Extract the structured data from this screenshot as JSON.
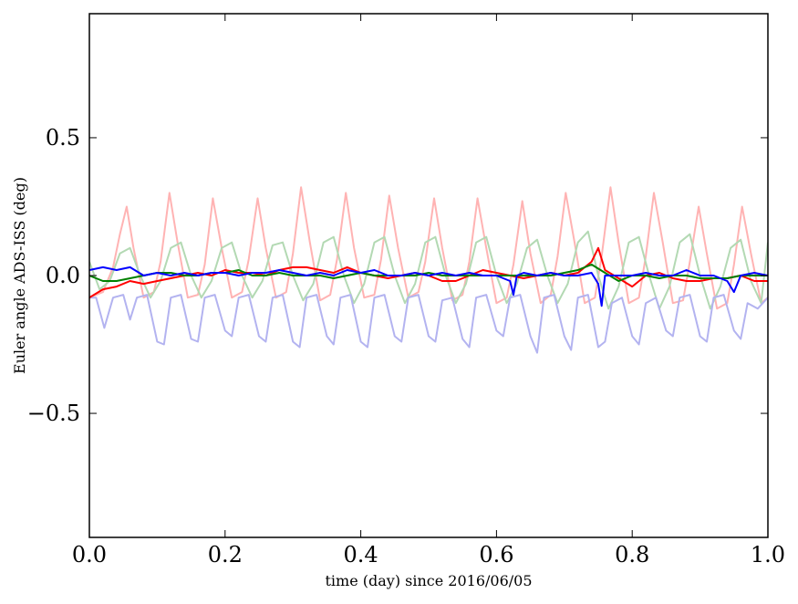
{
  "chart_data": {
    "type": "line",
    "title": "",
    "xlabel": "time (day) since 2016/06/05",
    "ylabel": "Euler angle ADS-ISS (deg)",
    "xlim": [
      0.0,
      1.0
    ],
    "ylim": [
      -0.95,
      0.95
    ],
    "x_ticks": [
      0.0,
      0.2,
      0.4,
      0.6,
      0.8,
      1.0
    ],
    "x_tick_labels": [
      "0.0",
      "0.2",
      "0.4",
      "0.6",
      "0.8",
      "1.0"
    ],
    "y_ticks": [
      -0.5,
      0.0,
      0.5
    ],
    "y_tick_labels": [
      "−0.5",
      "0.0",
      "0.5"
    ],
    "grid": false,
    "legend": "none",
    "series": [
      {
        "color": "#ffb3b3",
        "x": [
          0.0,
          0.02,
          0.035,
          0.045,
          0.055,
          0.065,
          0.08,
          0.095,
          0.105,
          0.118,
          0.13,
          0.145,
          0.16,
          0.17,
          0.182,
          0.195,
          0.21,
          0.225,
          0.235,
          0.248,
          0.26,
          0.275,
          0.29,
          0.3,
          0.312,
          0.325,
          0.34,
          0.355,
          0.365,
          0.378,
          0.39,
          0.405,
          0.42,
          0.43,
          0.442,
          0.455,
          0.47,
          0.485,
          0.495,
          0.508,
          0.52,
          0.535,
          0.55,
          0.56,
          0.572,
          0.585,
          0.6,
          0.615,
          0.625,
          0.638,
          0.65,
          0.665,
          0.68,
          0.69,
          0.702,
          0.715,
          0.73,
          0.745,
          0.755,
          0.768,
          0.78,
          0.795,
          0.81,
          0.82,
          0.832,
          0.845,
          0.86,
          0.875,
          0.885,
          0.898,
          0.91,
          0.925,
          0.94,
          0.95,
          0.962,
          0.975,
          0.99,
          1.0
        ],
        "y": [
          -0.08,
          -0.06,
          0.03,
          0.15,
          0.25,
          0.1,
          -0.08,
          -0.06,
          0.05,
          0.3,
          0.12,
          -0.08,
          -0.07,
          0.04,
          0.28,
          0.1,
          -0.08,
          -0.06,
          0.06,
          0.28,
          0.1,
          -0.08,
          -0.06,
          0.08,
          0.32,
          0.12,
          -0.09,
          -0.07,
          0.06,
          0.3,
          0.1,
          -0.08,
          -0.07,
          0.06,
          0.29,
          0.1,
          -0.08,
          -0.06,
          0.05,
          0.28,
          0.1,
          -0.09,
          -0.07,
          0.05,
          0.28,
          0.1,
          -0.1,
          -0.08,
          0.04,
          0.27,
          0.08,
          -0.1,
          -0.07,
          0.07,
          0.3,
          0.12,
          -0.1,
          -0.08,
          0.07,
          0.32,
          0.12,
          -0.1,
          -0.08,
          0.07,
          0.3,
          0.12,
          -0.1,
          -0.09,
          0.05,
          0.25,
          0.08,
          -0.12,
          -0.1,
          0.04,
          0.25,
          0.08,
          -0.1,
          -0.08
        ]
      },
      {
        "color": "#b3d9b3",
        "x": [
          0.0,
          0.015,
          0.03,
          0.045,
          0.06,
          0.075,
          0.09,
          0.105,
          0.12,
          0.135,
          0.15,
          0.165,
          0.18,
          0.195,
          0.21,
          0.225,
          0.24,
          0.255,
          0.27,
          0.285,
          0.3,
          0.315,
          0.33,
          0.345,
          0.36,
          0.375,
          0.39,
          0.405,
          0.42,
          0.435,
          0.45,
          0.465,
          0.48,
          0.495,
          0.51,
          0.525,
          0.54,
          0.555,
          0.57,
          0.585,
          0.6,
          0.615,
          0.63,
          0.645,
          0.66,
          0.675,
          0.69,
          0.705,
          0.72,
          0.735,
          0.75,
          0.765,
          0.78,
          0.795,
          0.81,
          0.825,
          0.84,
          0.855,
          0.87,
          0.885,
          0.9,
          0.915,
          0.93,
          0.945,
          0.96,
          0.975,
          0.99,
          1.0
        ],
        "y": [
          0.05,
          -0.05,
          -0.02,
          0.08,
          0.1,
          0.0,
          -0.08,
          -0.02,
          0.1,
          0.12,
          0.0,
          -0.08,
          -0.02,
          0.1,
          0.12,
          0.0,
          -0.08,
          -0.02,
          0.11,
          0.12,
          0.0,
          -0.09,
          -0.03,
          0.12,
          0.14,
          0.0,
          -0.1,
          -0.03,
          0.12,
          0.14,
          0.0,
          -0.1,
          -0.03,
          0.12,
          0.14,
          0.0,
          -0.1,
          -0.03,
          0.12,
          0.14,
          0.0,
          -0.1,
          -0.03,
          0.1,
          0.13,
          0.0,
          -0.1,
          -0.03,
          0.12,
          0.16,
          0.0,
          -0.12,
          -0.04,
          0.12,
          0.14,
          0.0,
          -0.12,
          -0.04,
          0.12,
          0.15,
          0.0,
          -0.12,
          -0.04,
          0.1,
          0.13,
          -0.02,
          -0.1,
          0.12
        ]
      },
      {
        "color": "#b3b3f0",
        "x": [
          0.0,
          0.01,
          0.022,
          0.035,
          0.05,
          0.06,
          0.07,
          0.085,
          0.1,
          0.11,
          0.12,
          0.135,
          0.15,
          0.16,
          0.17,
          0.185,
          0.2,
          0.21,
          0.22,
          0.235,
          0.25,
          0.26,
          0.27,
          0.285,
          0.3,
          0.31,
          0.32,
          0.335,
          0.35,
          0.36,
          0.37,
          0.385,
          0.4,
          0.41,
          0.42,
          0.435,
          0.45,
          0.46,
          0.47,
          0.485,
          0.5,
          0.51,
          0.52,
          0.535,
          0.55,
          0.56,
          0.57,
          0.585,
          0.6,
          0.61,
          0.62,
          0.635,
          0.65,
          0.66,
          0.67,
          0.685,
          0.7,
          0.71,
          0.72,
          0.735,
          0.75,
          0.76,
          0.77,
          0.785,
          0.8,
          0.81,
          0.82,
          0.835,
          0.85,
          0.86,
          0.87,
          0.885,
          0.9,
          0.91,
          0.92,
          0.935,
          0.95,
          0.96,
          0.97,
          0.985,
          1.0
        ],
        "y": [
          -0.08,
          -0.08,
          -0.19,
          -0.08,
          -0.07,
          -0.16,
          -0.08,
          -0.07,
          -0.24,
          -0.25,
          -0.08,
          -0.07,
          -0.23,
          -0.24,
          -0.08,
          -0.07,
          -0.2,
          -0.22,
          -0.08,
          -0.07,
          -0.22,
          -0.24,
          -0.08,
          -0.07,
          -0.24,
          -0.26,
          -0.08,
          -0.07,
          -0.22,
          -0.25,
          -0.08,
          -0.07,
          -0.24,
          -0.26,
          -0.08,
          -0.07,
          -0.22,
          -0.24,
          -0.08,
          -0.07,
          -0.22,
          -0.24,
          -0.09,
          -0.08,
          -0.23,
          -0.26,
          -0.08,
          -0.07,
          -0.2,
          -0.22,
          -0.08,
          -0.07,
          -0.22,
          -0.28,
          -0.08,
          -0.07,
          -0.22,
          -0.27,
          -0.08,
          -0.07,
          -0.26,
          -0.24,
          -0.1,
          -0.08,
          -0.22,
          -0.25,
          -0.1,
          -0.08,
          -0.2,
          -0.22,
          -0.08,
          -0.07,
          -0.22,
          -0.24,
          -0.08,
          -0.07,
          -0.2,
          -0.23,
          -0.1,
          -0.12,
          -0.08
        ]
      },
      {
        "color": "#ff0000",
        "x": [
          0.0,
          0.02,
          0.04,
          0.06,
          0.08,
          0.1,
          0.12,
          0.14,
          0.16,
          0.18,
          0.2,
          0.22,
          0.24,
          0.26,
          0.28,
          0.3,
          0.32,
          0.34,
          0.36,
          0.38,
          0.4,
          0.42,
          0.44,
          0.46,
          0.48,
          0.5,
          0.52,
          0.54,
          0.56,
          0.58,
          0.6,
          0.62,
          0.64,
          0.66,
          0.68,
          0.7,
          0.72,
          0.74,
          0.75,
          0.76,
          0.78,
          0.8,
          0.82,
          0.84,
          0.86,
          0.88,
          0.9,
          0.92,
          0.94,
          0.96,
          0.98,
          1.0
        ],
        "y": [
          -0.08,
          -0.05,
          -0.04,
          -0.02,
          -0.03,
          -0.02,
          -0.01,
          0.0,
          0.01,
          0.0,
          0.02,
          0.01,
          0.01,
          0.0,
          0.02,
          0.03,
          0.03,
          0.02,
          0.01,
          0.03,
          0.01,
          0.0,
          -0.01,
          0.0,
          0.01,
          0.0,
          -0.02,
          -0.02,
          0.0,
          0.02,
          0.01,
          0.0,
          -0.01,
          0.0,
          0.01,
          0.0,
          0.01,
          0.05,
          0.1,
          0.02,
          -0.01,
          -0.04,
          0.0,
          0.01,
          -0.01,
          -0.02,
          -0.02,
          -0.01,
          -0.01,
          0.0,
          -0.02,
          -0.02
        ]
      },
      {
        "color": "#008000",
        "x": [
          0.0,
          0.02,
          0.04,
          0.06,
          0.08,
          0.1,
          0.12,
          0.14,
          0.16,
          0.18,
          0.2,
          0.22,
          0.24,
          0.26,
          0.28,
          0.3,
          0.32,
          0.34,
          0.36,
          0.38,
          0.4,
          0.42,
          0.44,
          0.46,
          0.48,
          0.5,
          0.52,
          0.54,
          0.56,
          0.58,
          0.6,
          0.62,
          0.64,
          0.66,
          0.68,
          0.7,
          0.72,
          0.74,
          0.76,
          0.78,
          0.8,
          0.82,
          0.84,
          0.86,
          0.88,
          0.9,
          0.92,
          0.94,
          0.96,
          0.98,
          1.0
        ],
        "y": [
          0.0,
          -0.02,
          -0.02,
          -0.01,
          0.0,
          0.01,
          0.01,
          0.0,
          0.0,
          0.01,
          0.01,
          0.02,
          0.0,
          0.0,
          0.01,
          0.0,
          0.0,
          0.0,
          -0.01,
          0.0,
          0.01,
          0.0,
          0.0,
          0.0,
          0.0,
          0.01,
          0.0,
          0.0,
          0.0,
          0.0,
          0.0,
          0.0,
          0.0,
          0.0,
          0.0,
          0.01,
          0.02,
          0.04,
          0.01,
          -0.02,
          0.0,
          0.0,
          -0.01,
          0.0,
          0.0,
          -0.01,
          -0.01,
          -0.01,
          0.0,
          0.0,
          0.0
        ]
      },
      {
        "color": "#0000ff",
        "x": [
          0.0,
          0.02,
          0.04,
          0.06,
          0.08,
          0.1,
          0.12,
          0.14,
          0.16,
          0.18,
          0.2,
          0.22,
          0.24,
          0.26,
          0.28,
          0.3,
          0.32,
          0.34,
          0.36,
          0.38,
          0.4,
          0.42,
          0.44,
          0.46,
          0.48,
          0.5,
          0.52,
          0.54,
          0.56,
          0.58,
          0.6,
          0.62,
          0.625,
          0.63,
          0.64,
          0.66,
          0.68,
          0.7,
          0.72,
          0.74,
          0.75,
          0.755,
          0.76,
          0.78,
          0.8,
          0.82,
          0.84,
          0.86,
          0.88,
          0.9,
          0.92,
          0.94,
          0.95,
          0.96,
          0.98,
          1.0
        ],
        "y": [
          0.02,
          0.03,
          0.02,
          0.03,
          0.0,
          0.01,
          0.0,
          0.01,
          0.0,
          0.01,
          0.01,
          0.0,
          0.01,
          0.01,
          0.02,
          0.01,
          0.0,
          0.01,
          0.0,
          0.02,
          0.01,
          0.02,
          0.0,
          0.0,
          0.01,
          0.0,
          0.01,
          0.0,
          0.01,
          0.0,
          0.0,
          -0.02,
          -0.07,
          0.0,
          0.01,
          0.0,
          0.01,
          0.0,
          0.0,
          0.01,
          -0.03,
          -0.11,
          0.0,
          0.0,
          0.0,
          0.01,
          0.0,
          0.0,
          0.02,
          0.0,
          0.0,
          -0.02,
          -0.06,
          0.0,
          0.01,
          0.0
        ]
      }
    ]
  }
}
